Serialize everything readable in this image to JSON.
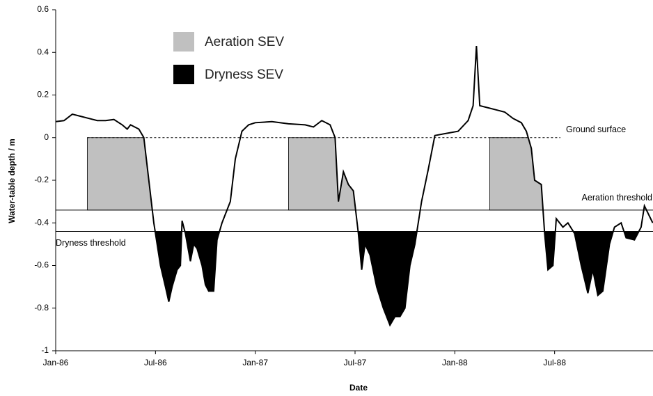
{
  "chart_data": {
    "type": "line",
    "ylabel": "Water-table depth / m",
    "xlabel": "Date",
    "legend": [
      {
        "name": "Aeration SEV",
        "color": "#c0c0c0"
      },
      {
        "name": "Dryness SEV",
        "color": "#000000"
      }
    ],
    "annotations": {
      "ground": "Ground surface",
      "aeration": "Aeration threshold",
      "dryness": "Dryness threshold"
    },
    "thresholds": {
      "ground": 0,
      "aeration": -0.34,
      "dryness": -0.44
    },
    "aeration_starts": [
      1.9,
      14.0,
      26.1
    ],
    "color": "#000000",
    "x": [
      0,
      0.5,
      1,
      1.5,
      2,
      2.5,
      3,
      3.5,
      4,
      4.3,
      4.5,
      5,
      5.3,
      5.6,
      5.9,
      6,
      6.3,
      6.6,
      6.8,
      7.0,
      7.3,
      7.5,
      7.6,
      7.8,
      8.1,
      8.3,
      8.5,
      8.8,
      9.0,
      9.2,
      9.5,
      9.7,
      10.0,
      10.5,
      10.8,
      11.2,
      11.6,
      12,
      13,
      14,
      15,
      15.5,
      16,
      16.5,
      16.8,
      17.0,
      17.3,
      17.6,
      17.9,
      18.2,
      18.4,
      18.6,
      18.9,
      19.3,
      19.7,
      20.1,
      20.4,
      20.7,
      21.0,
      21.3,
      21.6,
      22.0,
      22.4,
      22.8,
      23.5,
      24.2,
      24.8,
      25.1,
      25.3,
      25.5,
      26.0,
      26.5,
      27.0,
      27.5,
      28.0,
      28.3,
      28.6,
      28.8,
      29.2,
      29.4,
      29.6,
      29.9,
      30.1,
      30.5,
      30.8,
      31.2,
      31.6,
      32.0,
      32.3,
      32.6,
      32.9,
      33.3,
      33.6,
      34.0,
      34.3,
      34.8,
      35.2,
      35.4,
      35.9
    ],
    "values": [
      0.075,
      0.08,
      0.11,
      0.1,
      0.09,
      0.08,
      0.08,
      0.085,
      0.06,
      0.04,
      0.06,
      0.04,
      0.0,
      -0.2,
      -0.4,
      -0.45,
      -0.6,
      -0.7,
      -0.77,
      -0.7,
      -0.62,
      -0.6,
      -0.39,
      -0.45,
      -0.58,
      -0.5,
      -0.52,
      -0.6,
      -0.69,
      -0.72,
      -0.72,
      -0.48,
      -0.4,
      -0.3,
      -0.1,
      0.03,
      0.06,
      0.07,
      0.075,
      0.065,
      0.06,
      0.05,
      0.08,
      0.06,
      0.0,
      -0.3,
      -0.16,
      -0.22,
      -0.25,
      -0.45,
      -0.62,
      -0.5,
      -0.55,
      -0.7,
      -0.8,
      -0.88,
      -0.84,
      -0.84,
      -0.8,
      -0.6,
      -0.5,
      -0.3,
      -0.15,
      0.01,
      0.02,
      0.03,
      0.08,
      0.15,
      0.43,
      0.15,
      0.14,
      0.13,
      0.12,
      0.09,
      0.07,
      0.03,
      -0.05,
      -0.2,
      -0.22,
      -0.45,
      -0.62,
      -0.6,
      -0.38,
      -0.42,
      -0.4,
      -0.45,
      -0.6,
      -0.73,
      -0.62,
      -0.74,
      -0.72,
      -0.5,
      -0.42,
      -0.4,
      -0.47,
      -0.48,
      -0.42,
      -0.32,
      -0.4
    ],
    "xlim": [
      0,
      36
    ],
    "xticks": [
      {
        "value": 0,
        "label": "Jan-86"
      },
      {
        "value": 6,
        "label": "Jul-86"
      },
      {
        "value": 12,
        "label": "Jan-87"
      },
      {
        "value": 18,
        "label": "Jul-87"
      },
      {
        "value": 24,
        "label": "Jan-88"
      },
      {
        "value": 30,
        "label": "Jul-88"
      }
    ],
    "ylim": [
      -1,
      0.6
    ],
    "yticks": [
      0.6,
      0.4,
      0.2,
      0,
      -0.2,
      -0.4,
      -0.6,
      -0.8,
      -1
    ]
  }
}
